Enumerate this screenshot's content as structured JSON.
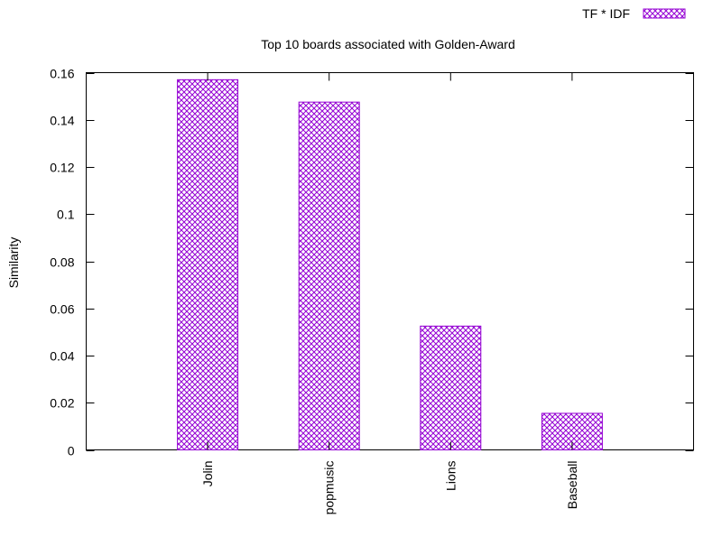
{
  "chart_data": {
    "type": "bar",
    "title": "Top 10 boards associated with Golden-Award",
    "xlabel": "",
    "ylabel": "Similarity",
    "categories": [
      "Jolin",
      "popmusic",
      "Lions",
      "Baseball"
    ],
    "series": [
      {
        "name": "TF * IDF",
        "values": [
          0.157,
          0.1475,
          0.0525,
          0.0155
        ]
      }
    ],
    "ylim": [
      0,
      0.16
    ],
    "yticks": [
      "0",
      "0.02",
      "0.04",
      "0.06",
      "0.08",
      "0.1",
      "0.12",
      "0.14",
      "0.16"
    ],
    "grid": false,
    "legend_position": "top-right",
    "colors": {
      "bar": "#9400d3",
      "axis": "#000000"
    }
  }
}
